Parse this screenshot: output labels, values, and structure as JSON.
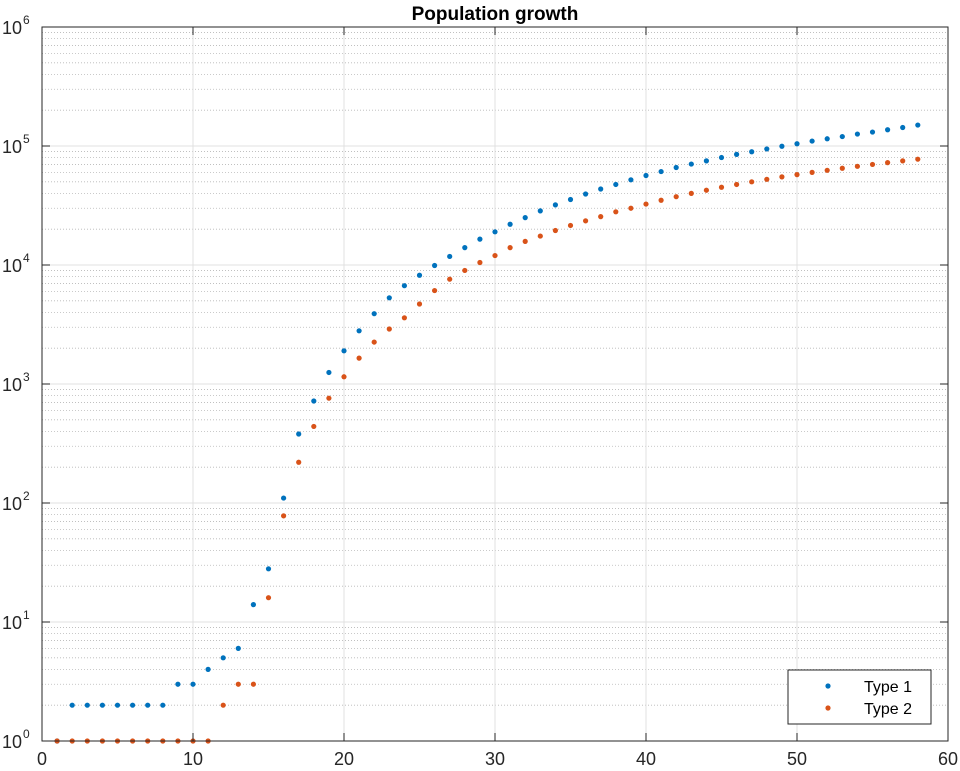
{
  "chart_data": {
    "type": "scatter",
    "title": "Population growth",
    "xlabel": "",
    "ylabel": "",
    "xlim": [
      0,
      60
    ],
    "ylim": [
      1,
      1000000
    ],
    "yscale": "log",
    "grid": true,
    "minor_grid": true,
    "legend_position": "bottom-right",
    "x_ticks": [
      "0",
      "10",
      "20",
      "30",
      "40",
      "50",
      "60"
    ],
    "y_ticks": [
      {
        "base": "10",
        "exp": "0"
      },
      {
        "base": "10",
        "exp": "1"
      },
      {
        "base": "10",
        "exp": "2"
      },
      {
        "base": "10",
        "exp": "3"
      },
      {
        "base": "10",
        "exp": "4"
      },
      {
        "base": "10",
        "exp": "5"
      },
      {
        "base": "10",
        "exp": "6"
      }
    ],
    "series": [
      {
        "name": "Type 1",
        "color": "#0072BD",
        "x": [
          1,
          2,
          3,
          4,
          5,
          6,
          7,
          8,
          9,
          10,
          11,
          12,
          13,
          14,
          15,
          16,
          17,
          18,
          19,
          20,
          21,
          22,
          23,
          24,
          25,
          26,
          27,
          28,
          29,
          30,
          31,
          32,
          33,
          34,
          35,
          36,
          37,
          38,
          39,
          40,
          41,
          42,
          43,
          44,
          45,
          46,
          47,
          48,
          49,
          50,
          51,
          52,
          53,
          54,
          55,
          56,
          57,
          58
        ],
        "y": [
          1,
          2,
          2,
          2,
          2,
          2,
          2,
          2,
          3,
          3,
          4,
          5,
          6,
          14,
          28,
          110,
          380,
          720,
          1250,
          1900,
          2800,
          3900,
          5300,
          6700,
          8200,
          9900,
          11800,
          14000,
          16500,
          19000,
          22000,
          25000,
          28500,
          32000,
          35500,
          39500,
          43500,
          47500,
          52000,
          56500,
          61000,
          66000,
          70500,
          75000,
          80000,
          85000,
          89500,
          94500,
          99500,
          104500,
          110000,
          115000,
          120000,
          126000,
          131000,
          137000,
          143000,
          150000
        ]
      },
      {
        "name": "Type 2",
        "color": "#D95319",
        "x": [
          1,
          2,
          3,
          4,
          5,
          6,
          7,
          8,
          9,
          10,
          11,
          12,
          13,
          14,
          15,
          16,
          17,
          18,
          19,
          20,
          21,
          22,
          23,
          24,
          25,
          26,
          27,
          28,
          29,
          30,
          31,
          32,
          33,
          34,
          35,
          36,
          37,
          38,
          39,
          40,
          41,
          42,
          43,
          44,
          45,
          46,
          47,
          48,
          49,
          50,
          51,
          52,
          53,
          54,
          55,
          56,
          57,
          58
        ],
        "y": [
          1,
          1,
          1,
          1,
          1,
          1,
          1,
          1,
          1,
          1,
          1,
          2,
          3,
          3,
          16,
          78,
          220,
          440,
          760,
          1150,
          1650,
          2250,
          2900,
          3600,
          4700,
          6100,
          7600,
          9000,
          10500,
          12000,
          14000,
          15800,
          17500,
          19500,
          21500,
          23500,
          25500,
          28000,
          30000,
          32500,
          35000,
          37500,
          40000,
          42500,
          45000,
          47500,
          50000,
          52500,
          55000,
          57500,
          60000,
          62500,
          65000,
          67500,
          70000,
          72500,
          75000,
          77500
        ]
      }
    ]
  }
}
